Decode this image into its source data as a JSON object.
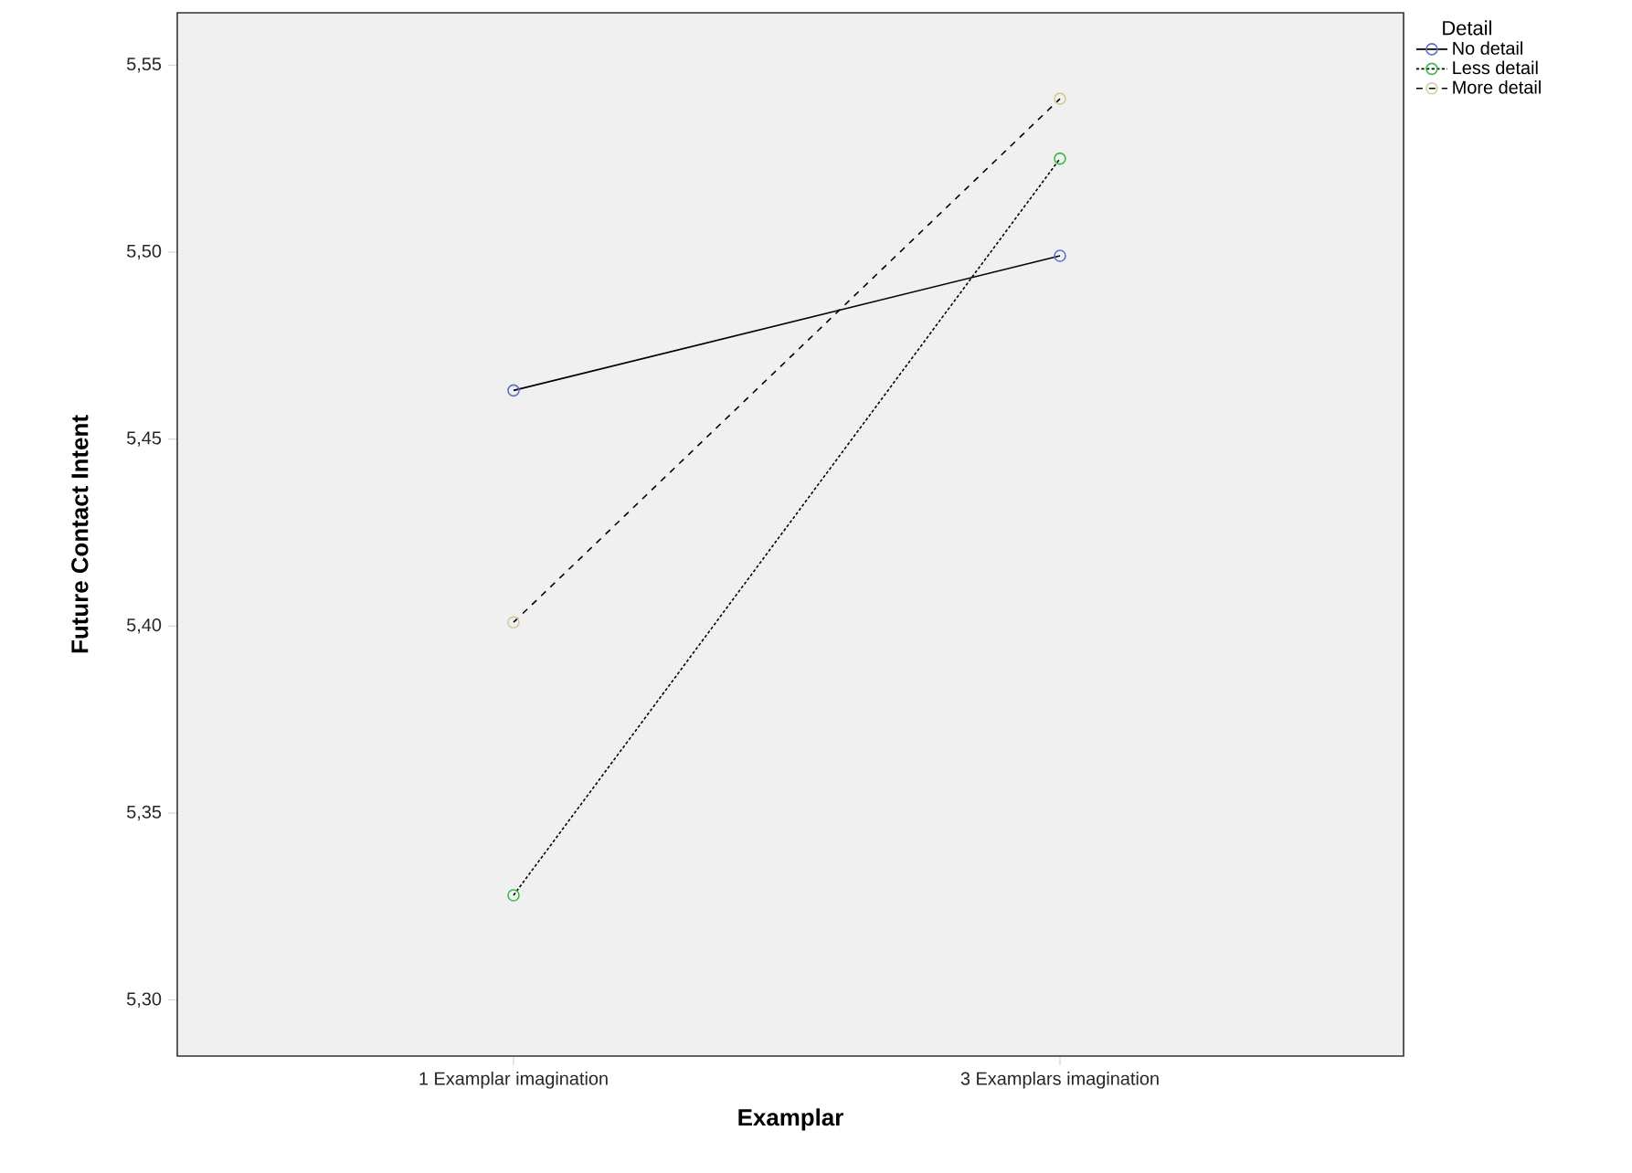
{
  "chart_data": {
    "type": "line",
    "xlabel": "Examplar",
    "ylabel": "Future Contact Intent",
    "legend_title": "Detail",
    "categories": [
      "1 Examplar imagination",
      "3 Examplars imagination"
    ],
    "series": [
      {
        "name": "No detail",
        "color": "#5b73c8",
        "line_style": "solid",
        "values": [
          5.463,
          5.499
        ]
      },
      {
        "name": "Less detail",
        "color": "#3dbb4c",
        "line_style": "dotted",
        "values": [
          5.328,
          5.525
        ]
      },
      {
        "name": "More detail",
        "color": "#d2cb98",
        "line_style": "dashed",
        "values": [
          5.401,
          5.541
        ]
      }
    ],
    "ylim": [
      5.285,
      5.564
    ],
    "yticks": [
      {
        "value": 5.3,
        "label": "5,30"
      },
      {
        "value": 5.35,
        "label": "5,35"
      },
      {
        "value": 5.4,
        "label": "5,40"
      },
      {
        "value": 5.45,
        "label": "5,45"
      },
      {
        "value": 5.5,
        "label": "5,50"
      },
      {
        "value": 5.55,
        "label": "5,55"
      }
    ],
    "marker": "circle",
    "legend": "right",
    "grid": false
  }
}
